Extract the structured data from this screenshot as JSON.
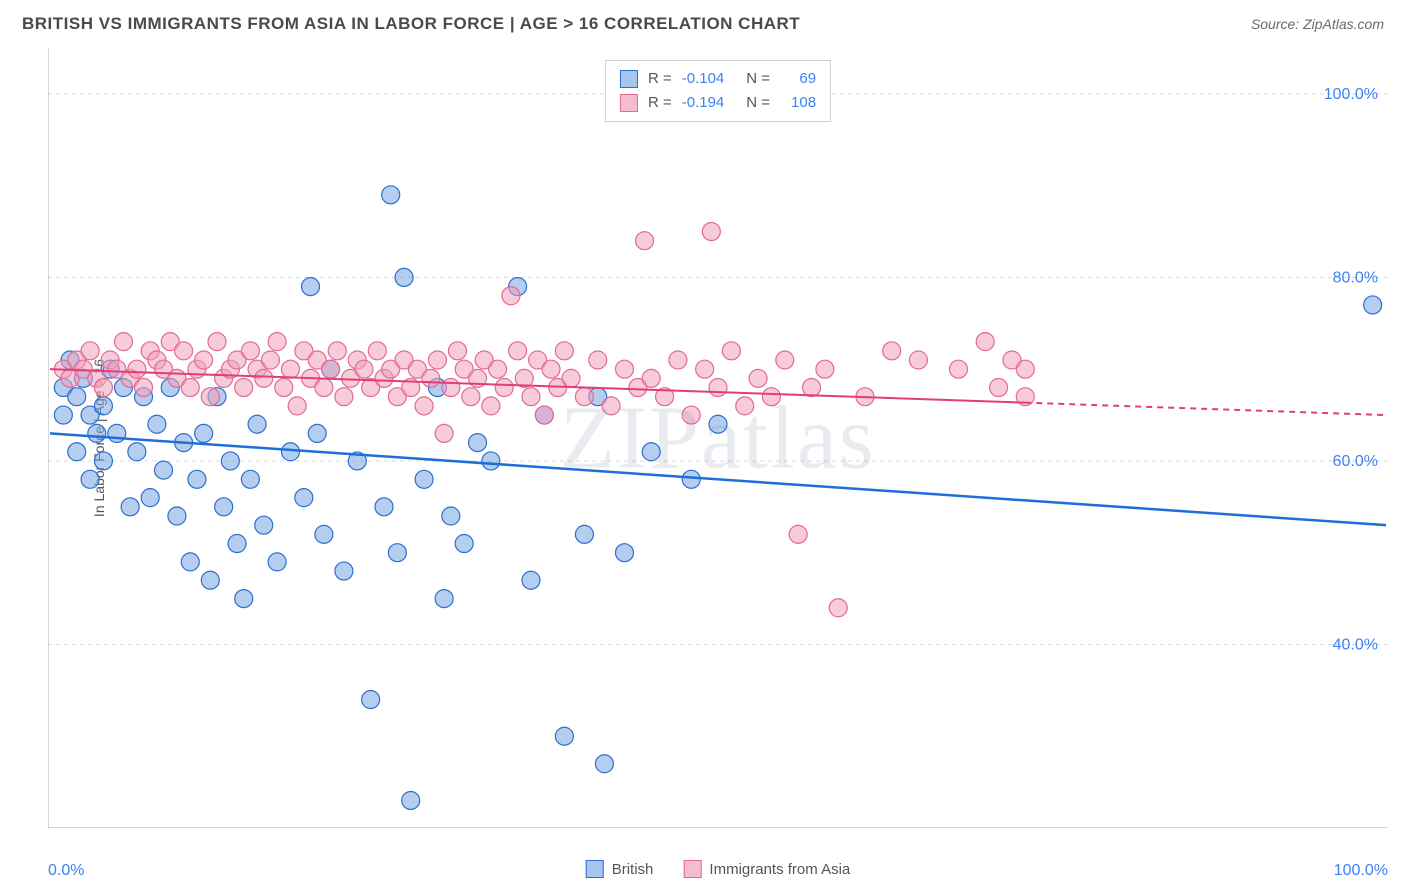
{
  "header": {
    "title": "BRITISH VS IMMIGRANTS FROM ASIA IN LABOR FORCE | AGE > 16 CORRELATION CHART",
    "source": "Source: ZipAtlas.com"
  },
  "watermark": "ZIPatlas",
  "chart": {
    "type": "scatter",
    "background_color": "#ffffff",
    "grid_color": "#d8d8d8",
    "axis_color": "#c8c8c8",
    "ylabel": "In Labor Force | Age > 16",
    "x_axis": {
      "min": 0,
      "max": 100,
      "label_left": "0.0%",
      "label_right": "100.0%",
      "tick_step": 10
    },
    "y_axis": {
      "min": 20,
      "max": 105,
      "ticks": [
        40,
        60,
        80,
        100
      ],
      "tick_labels": [
        "40.0%",
        "60.0%",
        "80.0%",
        "100.0%"
      ],
      "label_color": "#3b82f6",
      "label_fontsize": 16
    },
    "stats_box": {
      "rows": [
        {
          "swatch_fill": "#a8c5ed",
          "swatch_stroke": "#2c6fd1",
          "r_label": "R =",
          "r_val": "-0.104",
          "n_label": "N =",
          "n_val": "69"
        },
        {
          "swatch_fill": "#f4bccc",
          "swatch_stroke": "#e36a92",
          "r_label": "R =",
          "r_val": "-0.194",
          "n_label": "N =",
          "n_val": "108"
        }
      ]
    },
    "legend": {
      "items": [
        {
          "swatch_fill": "#a8c5ed",
          "swatch_stroke": "#2c6fd1",
          "label": "British"
        },
        {
          "swatch_fill": "#f4bccc",
          "swatch_stroke": "#e36a92",
          "label": "Immigrants from Asia"
        }
      ]
    },
    "series": [
      {
        "name": "British",
        "marker_fill": "rgba(120,165,225,0.55)",
        "marker_stroke": "#2c6fd1",
        "marker_radius": 9,
        "line_color": "#1e6fd9",
        "line_width": 2.5,
        "trend": {
          "y_at_x0": 63,
          "y_at_x100": 53
        },
        "points": [
          [
            1,
            68
          ],
          [
            1,
            65
          ],
          [
            1.5,
            71
          ],
          [
            2,
            67
          ],
          [
            2,
            61
          ],
          [
            2.5,
            69
          ],
          [
            3,
            65
          ],
          [
            3,
            58
          ],
          [
            3.5,
            63
          ],
          [
            4,
            66
          ],
          [
            4,
            60
          ],
          [
            4.5,
            70
          ],
          [
            5,
            63
          ],
          [
            5.5,
            68
          ],
          [
            6,
            55
          ],
          [
            6.5,
            61
          ],
          [
            7,
            67
          ],
          [
            7.5,
            56
          ],
          [
            8,
            64
          ],
          [
            8.5,
            59
          ],
          [
            9,
            68
          ],
          [
            9.5,
            54
          ],
          [
            10,
            62
          ],
          [
            10.5,
            49
          ],
          [
            11,
            58
          ],
          [
            11.5,
            63
          ],
          [
            12,
            47
          ],
          [
            12.5,
            67
          ],
          [
            13,
            55
          ],
          [
            13.5,
            60
          ],
          [
            14,
            51
          ],
          [
            14.5,
            45
          ],
          [
            15,
            58
          ],
          [
            15.5,
            64
          ],
          [
            16,
            53
          ],
          [
            17,
            49
          ],
          [
            18,
            61
          ],
          [
            19,
            56
          ],
          [
            19.5,
            79
          ],
          [
            20,
            63
          ],
          [
            20.5,
            52
          ],
          [
            21,
            70
          ],
          [
            22,
            48
          ],
          [
            23,
            60
          ],
          [
            24,
            34
          ],
          [
            25,
            55
          ],
          [
            25.5,
            89
          ],
          [
            26,
            50
          ],
          [
            26.5,
            80
          ],
          [
            27,
            23
          ],
          [
            28,
            58
          ],
          [
            29,
            68
          ],
          [
            29.5,
            45
          ],
          [
            30,
            54
          ],
          [
            31,
            51
          ],
          [
            32,
            62
          ],
          [
            33,
            60
          ],
          [
            35,
            79
          ],
          [
            36,
            47
          ],
          [
            37,
            65
          ],
          [
            38.5,
            30
          ],
          [
            40,
            52
          ],
          [
            41,
            67
          ],
          [
            41.5,
            27
          ],
          [
            43,
            50
          ],
          [
            45,
            61
          ],
          [
            48,
            58
          ],
          [
            50,
            64
          ],
          [
            99,
            77
          ]
        ]
      },
      {
        "name": "Immigrants from Asia",
        "marker_fill": "rgba(240,160,185,0.55)",
        "marker_stroke": "#e36a92",
        "marker_radius": 9,
        "line_color": "#e23d77",
        "line_width": 2,
        "trend": {
          "y_at_x0": 70,
          "y_at_x100": 65,
          "dash_from_x": 73
        },
        "points": [
          [
            1,
            70
          ],
          [
            1.5,
            69
          ],
          [
            2,
            71
          ],
          [
            2.5,
            70
          ],
          [
            3,
            72
          ],
          [
            3.5,
            69
          ],
          [
            4,
            68
          ],
          [
            4.5,
            71
          ],
          [
            5,
            70
          ],
          [
            5.5,
            73
          ],
          [
            6,
            69
          ],
          [
            6.5,
            70
          ],
          [
            7,
            68
          ],
          [
            7.5,
            72
          ],
          [
            8,
            71
          ],
          [
            8.5,
            70
          ],
          [
            9,
            73
          ],
          [
            9.5,
            69
          ],
          [
            10,
            72
          ],
          [
            10.5,
            68
          ],
          [
            11,
            70
          ],
          [
            11.5,
            71
          ],
          [
            12,
            67
          ],
          [
            12.5,
            73
          ],
          [
            13,
            69
          ],
          [
            13.5,
            70
          ],
          [
            14,
            71
          ],
          [
            14.5,
            68
          ],
          [
            15,
            72
          ],
          [
            15.5,
            70
          ],
          [
            16,
            69
          ],
          [
            16.5,
            71
          ],
          [
            17,
            73
          ],
          [
            17.5,
            68
          ],
          [
            18,
            70
          ],
          [
            18.5,
            66
          ],
          [
            19,
            72
          ],
          [
            19.5,
            69
          ],
          [
            20,
            71
          ],
          [
            20.5,
            68
          ],
          [
            21,
            70
          ],
          [
            21.5,
            72
          ],
          [
            22,
            67
          ],
          [
            22.5,
            69
          ],
          [
            23,
            71
          ],
          [
            23.5,
            70
          ],
          [
            24,
            68
          ],
          [
            24.5,
            72
          ],
          [
            25,
            69
          ],
          [
            25.5,
            70
          ],
          [
            26,
            67
          ],
          [
            26.5,
            71
          ],
          [
            27,
            68
          ],
          [
            27.5,
            70
          ],
          [
            28,
            66
          ],
          [
            28.5,
            69
          ],
          [
            29,
            71
          ],
          [
            29.5,
            63
          ],
          [
            30,
            68
          ],
          [
            30.5,
            72
          ],
          [
            31,
            70
          ],
          [
            31.5,
            67
          ],
          [
            32,
            69
          ],
          [
            32.5,
            71
          ],
          [
            33,
            66
          ],
          [
            33.5,
            70
          ],
          [
            34,
            68
          ],
          [
            34.5,
            78
          ],
          [
            35,
            72
          ],
          [
            35.5,
            69
          ],
          [
            36,
            67
          ],
          [
            36.5,
            71
          ],
          [
            37,
            65
          ],
          [
            37.5,
            70
          ],
          [
            38,
            68
          ],
          [
            38.5,
            72
          ],
          [
            39,
            69
          ],
          [
            40,
            67
          ],
          [
            41,
            71
          ],
          [
            42,
            66
          ],
          [
            43,
            70
          ],
          [
            44,
            68
          ],
          [
            44.5,
            84
          ],
          [
            45,
            69
          ],
          [
            46,
            67
          ],
          [
            47,
            71
          ],
          [
            48,
            65
          ],
          [
            49,
            70
          ],
          [
            49.5,
            85
          ],
          [
            50,
            68
          ],
          [
            51,
            72
          ],
          [
            52,
            66
          ],
          [
            53,
            69
          ],
          [
            54,
            67
          ],
          [
            55,
            71
          ],
          [
            56,
            52
          ],
          [
            57,
            68
          ],
          [
            58,
            70
          ],
          [
            59,
            44
          ],
          [
            61,
            67
          ],
          [
            63,
            72
          ],
          [
            65,
            71
          ],
          [
            68,
            70
          ],
          [
            70,
            73
          ],
          [
            71,
            68
          ],
          [
            72,
            71
          ],
          [
            73,
            70
          ],
          [
            73,
            67
          ]
        ]
      }
    ]
  }
}
